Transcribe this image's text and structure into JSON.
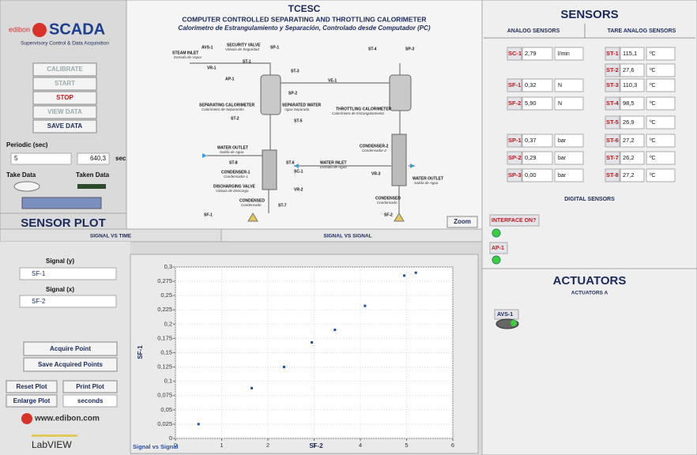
{
  "logo": {
    "brand": "edibon",
    "product": "SCADA",
    "tagline": "Supervisory Control & Data Acquisition"
  },
  "controls": {
    "buttons": [
      "CALIBRATE",
      "START",
      "STOP",
      "VIEW DATA",
      "SAVE DATA"
    ],
    "periodic_label": "Periodic (sec)",
    "periodic_value": "5",
    "elapsed": "640,3",
    "elapsed_unit": "sec",
    "take_data": "Take Data",
    "taken_data": "Taken Data"
  },
  "diagram": {
    "title": "TCESC",
    "subtitle": "COMPUTER CONTROLLED SEPARATING AND THROTTLING CALORIMETER",
    "subtitle_es": "Calorímetro de Estrangulamiento y Separación, Controlado desde Computador (PC)",
    "labels": [
      "AVS-1",
      "SECURITY VALVE",
      "Válvula de Seguridad",
      "SP-1",
      "STEAM INLET",
      "Entrada de Vapor",
      "ST-1",
      "VR-1",
      "AP-1",
      "ST-3",
      "SP-2",
      "VE-1",
      "ST-4",
      "SP-3",
      "SEPARATING CALORIMETER",
      "Calorímetro de Separación",
      "SEPARATED WATER",
      "Agua Separada",
      "ST-2",
      "ST-5",
      "THROTTLING CALORIMETER",
      "Calorímetro de Estrangulamiento",
      "WATER OUTLET",
      "Salida de Agua",
      "ST-8",
      "ST-6",
      "SC-1",
      "CONDENSER-1",
      "Condensador-1",
      "DISCHARGING VALVE",
      "Válvula de Descarga",
      "VR-2",
      "CONDENSED",
      "Condensado",
      "ST-7",
      "SF-1",
      "CONDENSER-2",
      "Condensador-2",
      "WATER INLET",
      "Entrada de Agua",
      "VR-3",
      "WATER OUTLET",
      "Salida de Agua",
      "CONDENSED",
      "Condensado",
      "SF-2"
    ],
    "zoom": "Zoom"
  },
  "sensors": {
    "title": "SENSORS",
    "tabs": [
      "ANALOG SENSORS",
      "TARE ANALOG SENSORS"
    ],
    "left": [
      {
        "name": "SC-1",
        "value": "2,79",
        "unit": "l/min"
      },
      {
        "name": "SF-1",
        "value": "0,32",
        "unit": "N"
      },
      {
        "name": "SF-2",
        "value": "5,90",
        "unit": "N"
      },
      {
        "name": "SP-1",
        "value": "0,37",
        "unit": "bar"
      },
      {
        "name": "SP-2",
        "value": "0,29",
        "unit": "bar"
      },
      {
        "name": "SP-3",
        "value": "0,00",
        "unit": "bar"
      }
    ],
    "right": [
      {
        "name": "ST-1",
        "value": "115,1",
        "unit": "ºC"
      },
      {
        "name": "ST-2",
        "value": "27,6",
        "unit": "ºC"
      },
      {
        "name": "ST-3",
        "value": "110,3",
        "unit": "ºC"
      },
      {
        "name": "ST-4",
        "value": "98,5",
        "unit": "ºC"
      },
      {
        "name": "ST-5",
        "value": "26,9",
        "unit": "ºC"
      },
      {
        "name": "ST-6",
        "value": "27,2",
        "unit": "ºC"
      },
      {
        "name": "ST-7",
        "value": "26,2",
        "unit": "ºC"
      },
      {
        "name": "ST-8",
        "value": "27,2",
        "unit": "ºC"
      }
    ],
    "digital_title": "DIGITAL SENSORS",
    "digital": [
      "INTERFACE ON?",
      "AP-1"
    ]
  },
  "actuators": {
    "title": "ACTUATORS",
    "subtitle": "ACTUATORS A",
    "items": [
      "AVS-1"
    ]
  },
  "plot_panel": {
    "title": "SENSOR PLOT",
    "tabs": [
      "SIGNAL VS TIME",
      "SIGNAL VS SIGNAL"
    ],
    "signal_y_label": "Signal (y)",
    "signal_y": "SF-1",
    "signal_x_label": "Signal (x)",
    "signal_x": "SF-2",
    "buttons": [
      "Acquire Point",
      "Save Acquired Points",
      "Reset Plot",
      "Print Plot",
      "Enlarge Plot"
    ],
    "time_unit": "seconds",
    "website": "www.edibon.com",
    "labview": "LabVIEW"
  },
  "chart_data": {
    "type": "scatter",
    "title": "Signal vs Signal",
    "x_label": "SF-2",
    "y_label": "SF-1",
    "color": "#1f4e9c",
    "x": [
      0.5,
      1.65,
      2.35,
      2.95,
      3.45,
      4.1,
      4.95,
      5.2
    ],
    "values": [
      0.025,
      0.088,
      0.125,
      0.168,
      0.19,
      0.232,
      0.285,
      0.29
    ],
    "xlim": [
      0,
      6
    ],
    "xticks": [
      0,
      1,
      2,
      3,
      4,
      5,
      6
    ],
    "ylim": [
      0,
      0.3
    ],
    "yticks": [
      0,
      {
        "value": 0.025,
        "label": "0,025"
      },
      {
        "value": 0.05,
        "label": "0,05"
      },
      {
        "value": 0.075,
        "label": "0,075"
      },
      {
        "value": 0.1,
        "label": "0,1"
      },
      {
        "value": 0.125,
        "label": "0,125"
      },
      {
        "value": 0.15,
        "label": "0,15"
      },
      {
        "value": 0.175,
        "label": "0,175"
      },
      {
        "value": 0.2,
        "label": "0,2"
      },
      {
        "value": 0.225,
        "label": "0,225"
      },
      {
        "value": 0.25,
        "label": "0,25"
      },
      {
        "value": 0.275,
        "label": "0,275"
      },
      {
        "value": 0.3,
        "label": "0,3"
      }
    ],
    "grid": true
  }
}
